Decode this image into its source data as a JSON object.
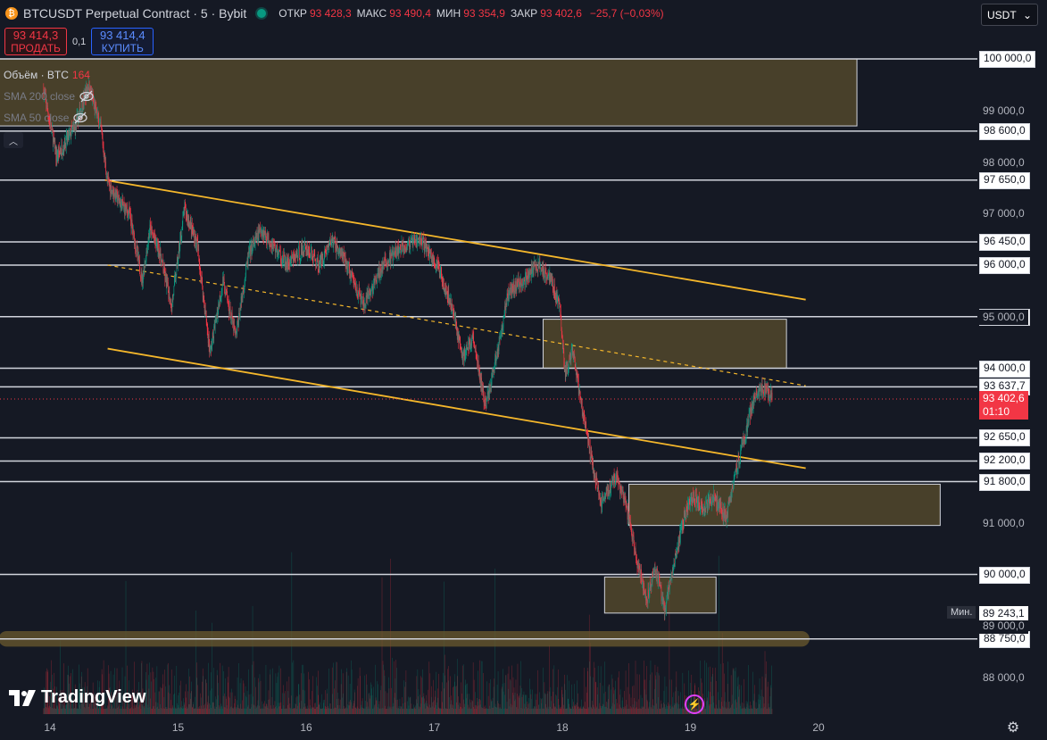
{
  "header": {
    "title": "BTCUSDT Perpetual Contract · 5 · Bybit",
    "ohlc": [
      {
        "k": "ОТКР",
        "v": "93 428,3"
      },
      {
        "k": "МАКС",
        "v": "93 490,4"
      },
      {
        "k": "МИН",
        "v": "93 354,9"
      },
      {
        "k": "ЗАКР",
        "v": "93 402,6"
      },
      {
        "k": "",
        "v": "−25,7 (−0,03%)"
      }
    ]
  },
  "trade": {
    "sell_price": "93 414,3",
    "sell_label": "ПРОДАТЬ",
    "spread": "0,1",
    "buy_price": "93 414,4",
    "buy_label": "КУПИТЬ"
  },
  "legend": {
    "volume_label": "Объём · BTC",
    "volume_value": "164",
    "sma200": "SMA 200 close",
    "sma50": "SMA 50 close"
  },
  "currency": "USDT",
  "colors": {
    "up": "#089981",
    "down": "#f23645",
    "zone": "#6b5a2e",
    "trendline": "#f5b72b",
    "level": "#d1d4dc",
    "bg": "#151924"
  },
  "chart_data": {
    "type": "candlestick",
    "symbol": "BTCUSDT",
    "timeframe": "5",
    "exchange": "Bybit",
    "ylim": [
      87700,
      100300
    ],
    "x_ticks": [
      "14",
      "15",
      "16",
      "17",
      "18",
      "19",
      "20"
    ],
    "axis_ticks": [
      "99 000,0",
      "98 000,0",
      "97 000,0",
      "95 000,0",
      "91 000,0",
      "89 000,0",
      "88 000,0"
    ],
    "levels": [
      {
        "price": 100000,
        "label": "100 000,0"
      },
      {
        "price": 98600,
        "label": "98 600,0"
      },
      {
        "price": 97650,
        "label": "97 650,0"
      },
      {
        "price": 96450,
        "label": "96 450,0"
      },
      {
        "price": 96000,
        "label": "96 000,0"
      },
      {
        "price": 95000,
        "label": "95 000,0"
      },
      {
        "price": 94000,
        "label": "94 000,0"
      },
      {
        "price": 93637.7,
        "label": "93 637,7"
      },
      {
        "price": 92650,
        "label": "92 650,0"
      },
      {
        "price": 92200,
        "label": "92 200,0"
      },
      {
        "price": 91800,
        "label": "91 800,0"
      },
      {
        "price": 90000,
        "label": "90 000,0"
      },
      {
        "price": 88750,
        "label": "88 750,0"
      }
    ],
    "current_price": {
      "value": 93402.6,
      "label": "93 402,6",
      "countdown": "01:10"
    },
    "min_marker": {
      "label": "Мин.",
      "value": 89243.1,
      "text": "89 243,1"
    },
    "zones": [
      {
        "t0": 13.4,
        "t1": 20.3,
        "p_low": 98700,
        "p_high": 100000
      },
      {
        "t0": 17.85,
        "t1": 19.75,
        "p_low": 94000,
        "p_high": 94950
      },
      {
        "t0": 18.52,
        "t1": 20.95,
        "p_low": 90950,
        "p_high": 91750
      },
      {
        "t0": 18.33,
        "t1": 19.2,
        "p_low": 89250,
        "p_high": 89950
      },
      {
        "t0": 13.6,
        "t1": 19.93,
        "p_low": 88600,
        "p_high": 88900
      }
    ],
    "trendlines": [
      {
        "t0": 14.43,
        "p0": 97650,
        "t1": 19.9,
        "p1": 95330,
        "style": "solid"
      },
      {
        "t0": 14.45,
        "p0": 96000,
        "t1": 19.9,
        "p1": 93660,
        "style": "dashed"
      },
      {
        "t0": 14.45,
        "p0": 94380,
        "t1": 19.9,
        "p1": 92060,
        "style": "solid"
      }
    ],
    "price_path": [
      [
        13.95,
        99400
      ],
      [
        14.05,
        98100
      ],
      [
        14.2,
        98700
      ],
      [
        14.3,
        99500
      ],
      [
        14.4,
        98600
      ],
      [
        14.45,
        97600
      ],
      [
        14.55,
        97200
      ],
      [
        14.62,
        97000
      ],
      [
        14.72,
        95700
      ],
      [
        14.78,
        96700
      ],
      [
        14.85,
        96300
      ],
      [
        14.95,
        95200
      ],
      [
        15.05,
        97100
      ],
      [
        15.15,
        96400
      ],
      [
        15.25,
        94300
      ],
      [
        15.35,
        95700
      ],
      [
        15.45,
        94600
      ],
      [
        15.55,
        96200
      ],
      [
        15.65,
        96700
      ],
      [
        15.75,
        96350
      ],
      [
        15.85,
        96000
      ],
      [
        16.0,
        96350
      ],
      [
        16.1,
        96000
      ],
      [
        16.2,
        96500
      ],
      [
        16.3,
        96100
      ],
      [
        16.45,
        95200
      ],
      [
        16.6,
        96000
      ],
      [
        16.75,
        96350
      ],
      [
        16.9,
        96500
      ],
      [
        17.05,
        95850
      ],
      [
        17.15,
        95100
      ],
      [
        17.22,
        94200
      ],
      [
        17.3,
        94600
      ],
      [
        17.4,
        93250
      ],
      [
        17.5,
        94400
      ],
      [
        17.58,
        95500
      ],
      [
        17.7,
        95700
      ],
      [
        17.8,
        96000
      ],
      [
        17.9,
        95800
      ],
      [
        17.98,
        95200
      ],
      [
        18.02,
        93900
      ],
      [
        18.08,
        94300
      ],
      [
        18.15,
        93300
      ],
      [
        18.22,
        92300
      ],
      [
        18.3,
        91400
      ],
      [
        18.42,
        91900
      ],
      [
        18.5,
        91300
      ],
      [
        18.58,
        90300
      ],
      [
        18.66,
        89500
      ],
      [
        18.72,
        90200
      ],
      [
        18.8,
        89300
      ],
      [
        18.88,
        90300
      ],
      [
        18.95,
        91100
      ],
      [
        19.02,
        91500
      ],
      [
        19.1,
        91300
      ],
      [
        19.18,
        91500
      ],
      [
        19.28,
        91100
      ],
      [
        19.35,
        92000
      ],
      [
        19.42,
        92600
      ],
      [
        19.5,
        93500
      ],
      [
        19.58,
        93600
      ],
      [
        19.64,
        93403
      ]
    ]
  }
}
